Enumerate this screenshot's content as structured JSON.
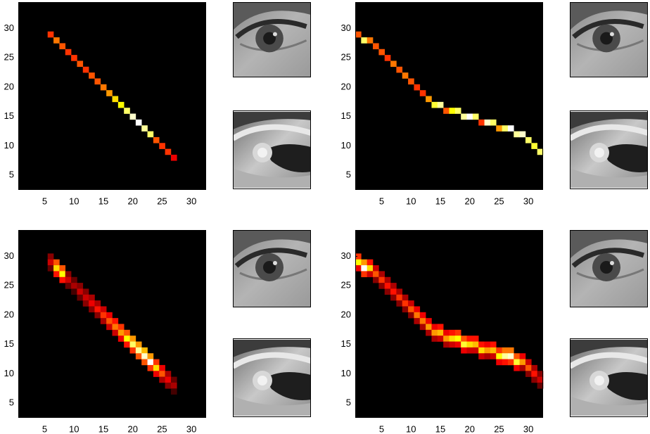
{
  "chart_data": [
    {
      "type": "heatmap",
      "colormap": "hot",
      "clim": [
        0,
        1
      ],
      "xlim": [
        0.5,
        32.5
      ],
      "ylim": [
        2.5,
        34.5
      ],
      "xticks": [
        5,
        10,
        15,
        20,
        25,
        30
      ],
      "yticks": [
        5,
        10,
        15,
        20,
        25,
        30
      ],
      "x": [
        6,
        7,
        8,
        9,
        10,
        11,
        12,
        13,
        14,
        15,
        16,
        17,
        18,
        19,
        20,
        21,
        22,
        23,
        24,
        25,
        26,
        27
      ],
      "y": [
        29,
        28,
        27,
        26,
        25,
        24,
        23,
        22,
        21,
        20,
        19,
        18,
        17,
        16,
        15,
        14,
        13,
        12,
        11,
        10,
        9,
        8
      ],
      "values": [
        0.45,
        0.55,
        0.5,
        0.45,
        0.45,
        0.5,
        0.45,
        0.5,
        0.5,
        0.55,
        0.6,
        0.7,
        0.75,
        0.85,
        0.95,
        1.0,
        0.9,
        0.85,
        0.5,
        0.45,
        0.45,
        0.35
      ]
    },
    {
      "type": "heatmap",
      "colormap": "hot",
      "clim": [
        0,
        1
      ],
      "xlim": [
        0.5,
        32.5
      ],
      "ylim": [
        2.5,
        34.5
      ],
      "xticks": [
        5,
        10,
        15,
        20,
        25,
        30
      ],
      "yticks": [
        5,
        10,
        15,
        20,
        25,
        30
      ],
      "x": [
        1,
        2,
        3,
        4,
        5,
        6,
        7,
        8,
        9,
        10,
        11,
        12,
        13,
        14,
        15,
        16,
        17,
        18,
        19,
        20,
        21,
        22,
        23,
        24,
        25,
        26,
        27,
        28,
        29,
        30,
        31,
        32
      ],
      "y": [
        29,
        28,
        28,
        27,
        26,
        25,
        24,
        23,
        22,
        21,
        20,
        19,
        18,
        17,
        17,
        16,
        16,
        16,
        15,
        15,
        15,
        14,
        14,
        14,
        13,
        13,
        13,
        12,
        12,
        11,
        10,
        9
      ],
      "values": [
        0.5,
        0.85,
        0.55,
        0.5,
        0.5,
        0.45,
        0.55,
        0.5,
        0.55,
        0.5,
        0.45,
        0.45,
        0.6,
        0.8,
        0.9,
        0.5,
        0.75,
        0.85,
        0.9,
        1.0,
        0.85,
        0.45,
        0.95,
        0.85,
        0.6,
        0.85,
        1.0,
        0.9,
        0.95,
        0.85,
        0.8,
        0.85
      ]
    },
    {
      "type": "heatmap",
      "colormap": "hot",
      "clim": [
        0,
        1
      ],
      "xlim": [
        0.5,
        32.5
      ],
      "ylim": [
        2.5,
        34.5
      ],
      "xticks": [
        5,
        10,
        15,
        20,
        25,
        30
      ],
      "yticks": [
        5,
        10,
        15,
        20,
        25,
        30
      ],
      "x": [
        6,
        6,
        6,
        7,
        7,
        7,
        8,
        8,
        8,
        9,
        9,
        9,
        10,
        10,
        10,
        11,
        11,
        11,
        12,
        12,
        12,
        13,
        13,
        13,
        14,
        14,
        14,
        15,
        15,
        15,
        16,
        16,
        16,
        17,
        17,
        17,
        18,
        18,
        18,
        19,
        19,
        19,
        20,
        20,
        20,
        21,
        21,
        21,
        22,
        22,
        22,
        23,
        23,
        23,
        24,
        24,
        24,
        25,
        25,
        25,
        26,
        26,
        26,
        27,
        27,
        27
      ],
      "y": [
        30,
        29,
        28,
        29,
        28,
        27,
        28,
        27,
        26,
        27,
        26,
        25,
        26,
        25,
        24,
        25,
        24,
        23,
        24,
        23,
        22,
        23,
        22,
        21,
        22,
        21,
        20,
        21,
        20,
        19,
        20,
        19,
        18,
        19,
        18,
        17,
        18,
        17,
        16,
        17,
        16,
        15,
        16,
        15,
        14,
        15,
        14,
        13,
        14,
        13,
        12,
        13,
        12,
        11,
        12,
        11,
        10,
        11,
        10,
        9,
        10,
        9,
        8,
        9,
        8,
        7
      ],
      "values": [
        0.2,
        0.3,
        0.15,
        0.5,
        0.7,
        0.4,
        0.5,
        0.75,
        0.4,
        0.2,
        0.3,
        0.15,
        0.15,
        0.25,
        0.1,
        0.2,
        0.3,
        0.15,
        0.2,
        0.3,
        0.2,
        0.25,
        0.35,
        0.2,
        0.25,
        0.4,
        0.2,
        0.3,
        0.45,
        0.25,
        0.35,
        0.5,
        0.3,
        0.4,
        0.55,
        0.3,
        0.45,
        0.6,
        0.35,
        0.5,
        0.75,
        0.4,
        0.6,
        0.85,
        0.45,
        0.6,
        0.9,
        0.5,
        0.65,
        0.95,
        0.5,
        0.6,
        1.0,
        0.45,
        0.45,
        0.7,
        0.35,
        0.35,
        0.5,
        0.25,
        0.25,
        0.35,
        0.2,
        0.15,
        0.25,
        0.1
      ]
    },
    {
      "type": "heatmap",
      "colormap": "hot",
      "clim": [
        0,
        1
      ],
      "xlim": [
        0.5,
        32.5
      ],
      "ylim": [
        2.5,
        34.5
      ],
      "xticks": [
        5,
        10,
        15,
        20,
        25,
        30
      ],
      "yticks": [
        5,
        10,
        15,
        20,
        25,
        30
      ],
      "x": [
        1,
        1,
        1,
        2,
        2,
        2,
        3,
        3,
        3,
        4,
        4,
        4,
        5,
        5,
        5,
        6,
        6,
        6,
        7,
        7,
        7,
        8,
        8,
        8,
        9,
        9,
        9,
        10,
        10,
        10,
        11,
        11,
        11,
        12,
        12,
        12,
        13,
        13,
        13,
        14,
        14,
        14,
        15,
        15,
        15,
        16,
        16,
        16,
        17,
        17,
        17,
        18,
        18,
        18,
        19,
        19,
        19,
        20,
        20,
        20,
        21,
        21,
        21,
        22,
        22,
        22,
        23,
        23,
        23,
        24,
        24,
        24,
        25,
        25,
        25,
        26,
        26,
        26,
        27,
        27,
        27,
        28,
        28,
        28,
        29,
        29,
        29,
        30,
        30,
        30,
        31,
        31,
        31,
        32,
        32,
        32
      ],
      "y": [
        30,
        29,
        28,
        29,
        28,
        27,
        29,
        28,
        27,
        28,
        27,
        26,
        27,
        26,
        25,
        26,
        25,
        24,
        25,
        24,
        23,
        24,
        23,
        22,
        23,
        22,
        21,
        22,
        21,
        20,
        21,
        20,
        19,
        20,
        19,
        18,
        19,
        18,
        17,
        18,
        17,
        16,
        18,
        17,
        16,
        17,
        16,
        15,
        17,
        16,
        15,
        17,
        16,
        15,
        16,
        15,
        14,
        16,
        15,
        14,
        16,
        15,
        14,
        15,
        14,
        13,
        15,
        14,
        13,
        15,
        14,
        13,
        14,
        13,
        12,
        14,
        13,
        12,
        14,
        13,
        12,
        13,
        12,
        11,
        13,
        12,
        11,
        12,
        11,
        10,
        11,
        10,
        9,
        10,
        9,
        8
      ],
      "values": [
        0.45,
        0.75,
        0.35,
        0.6,
        1.0,
        0.45,
        0.4,
        0.7,
        0.3,
        0.3,
        0.5,
        0.2,
        0.25,
        0.45,
        0.2,
        0.25,
        0.4,
        0.2,
        0.25,
        0.4,
        0.2,
        0.25,
        0.45,
        0.2,
        0.25,
        0.45,
        0.2,
        0.3,
        0.5,
        0.2,
        0.35,
        0.55,
        0.25,
        0.35,
        0.55,
        0.25,
        0.35,
        0.6,
        0.25,
        0.35,
        0.6,
        0.25,
        0.4,
        0.65,
        0.3,
        0.35,
        0.6,
        0.25,
        0.4,
        0.7,
        0.3,
        0.45,
        0.75,
        0.35,
        0.5,
        0.8,
        0.35,
        0.4,
        0.7,
        0.3,
        0.4,
        0.65,
        0.3,
        0.4,
        0.7,
        0.3,
        0.35,
        0.6,
        0.25,
        0.4,
        0.65,
        0.3,
        0.45,
        0.75,
        0.35,
        0.55,
        0.9,
        0.4,
        0.55,
        0.95,
        0.45,
        0.5,
        0.8,
        0.35,
        0.35,
        0.6,
        0.25,
        0.3,
        0.5,
        0.2,
        0.25,
        0.4,
        0.2,
        0.2,
        0.3,
        0.15
      ]
    }
  ]
}
